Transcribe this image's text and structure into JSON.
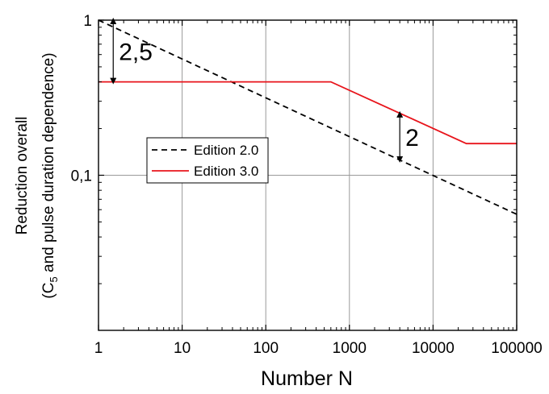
{
  "chart_data": {
    "type": "line",
    "xlabel": "Number N",
    "ylabel_line1": "Reduction overall",
    "ylabel_line2_prefix": "(C",
    "ylabel_line2_sub": "5",
    "ylabel_line2_suffix": " and pulse duration dependence)",
    "x_scale": "log",
    "y_scale": "log",
    "xlim": [
      1,
      100000
    ],
    "ylim": [
      0.01,
      1
    ],
    "x_ticks": [
      {
        "value": 1,
        "label": "1"
      },
      {
        "value": 10,
        "label": "10"
      },
      {
        "value": 100,
        "label": "100"
      },
      {
        "value": 1000,
        "label": "1000"
      },
      {
        "value": 10000,
        "label": "10000"
      },
      {
        "value": 100000,
        "label": "100000"
      }
    ],
    "y_ticks": [
      {
        "value": 1,
        "label": "1"
      },
      {
        "value": 0.1,
        "label": "0,1"
      }
    ],
    "grid": true,
    "legend_position": "center-left",
    "series": [
      {
        "name": "Edition 2.0",
        "color": "#000000",
        "style": "dashed",
        "x": [
          1,
          100000
        ],
        "y": [
          1.0,
          0.056
        ]
      },
      {
        "name": "Edition 3.0",
        "color": "#e8141b",
        "style": "solid",
        "x": [
          1,
          600,
          25000,
          100000
        ],
        "y": [
          0.4,
          0.4,
          0.16,
          0.16
        ]
      }
    ],
    "annotations": [
      {
        "text": "2,5",
        "x": 1.5,
        "y_from": 0.4,
        "y_to": 1.0
      },
      {
        "text": "2",
        "x": 4000,
        "y_from": 0.125,
        "y_to": 0.25
      }
    ]
  }
}
